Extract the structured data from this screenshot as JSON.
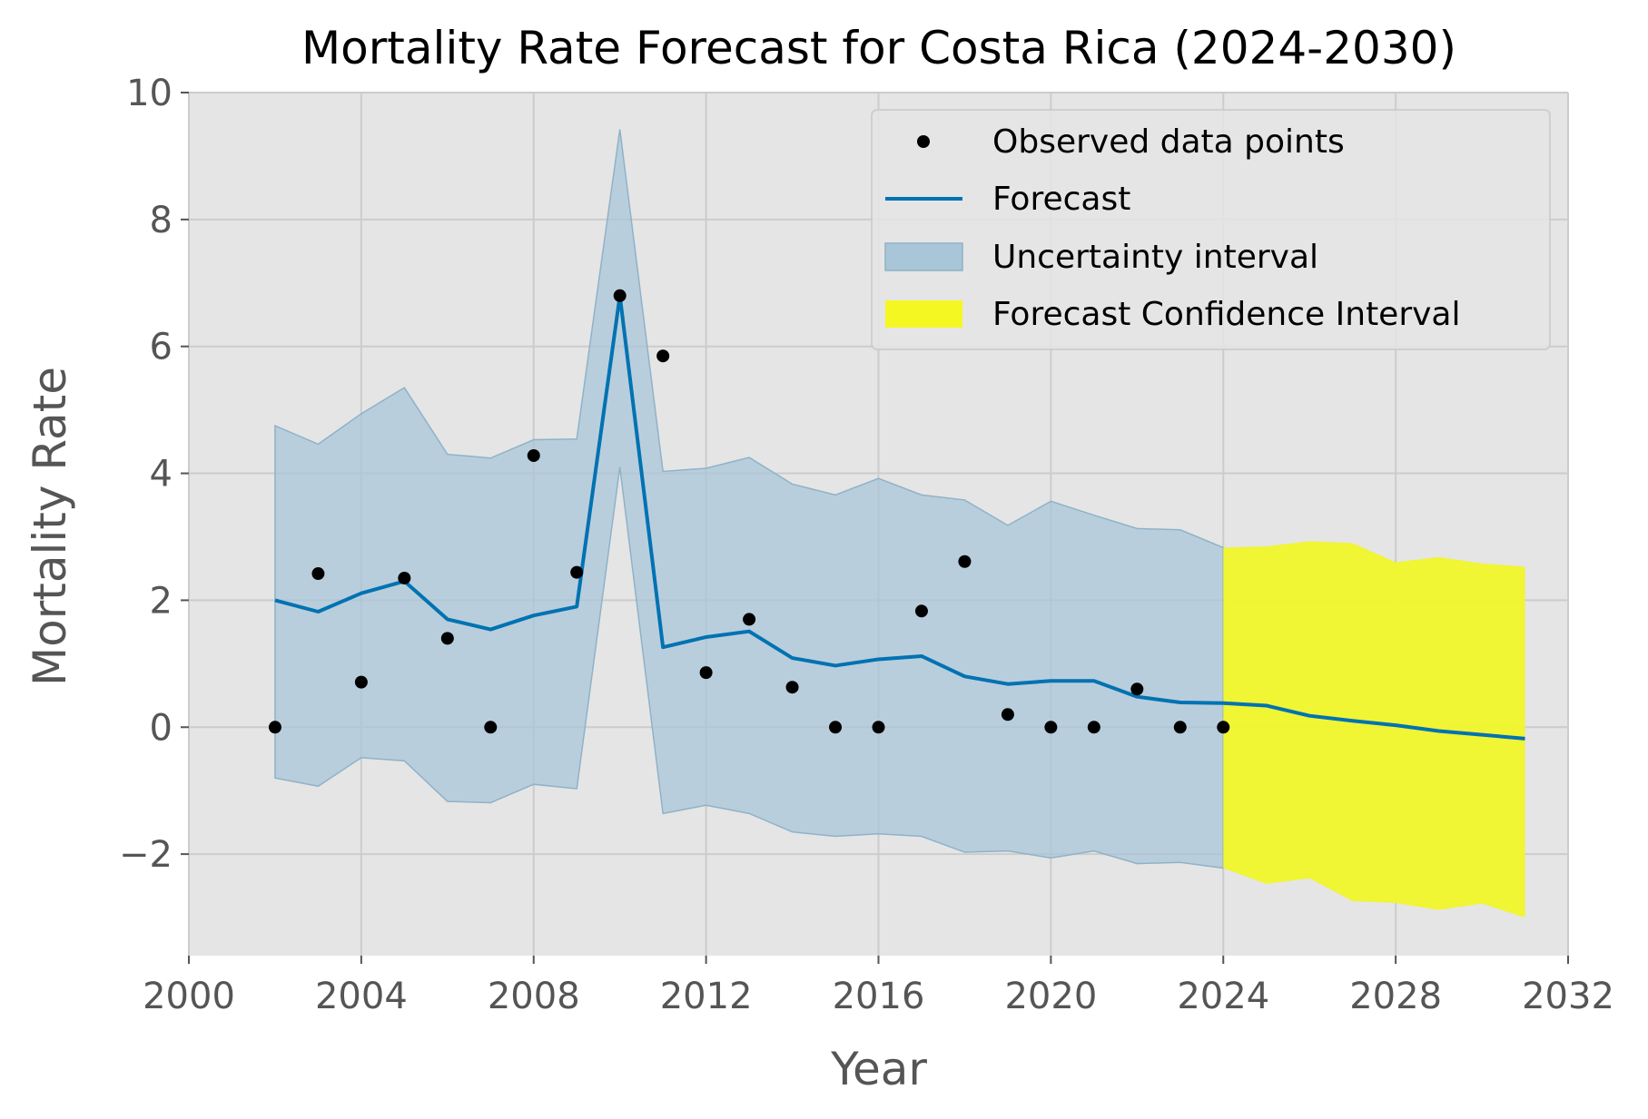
{
  "chart_data": {
    "type": "line",
    "title": "Mortality Rate Forecast for Costa Rica (2024-2030)",
    "xlabel": "Year",
    "ylabel": "Mortality Rate",
    "xlim": [
      2000,
      2032
    ],
    "ylim": [
      -3.6,
      10
    ],
    "x_ticks": [
      2000,
      2004,
      2008,
      2012,
      2016,
      2020,
      2024,
      2028,
      2032
    ],
    "y_ticks": [
      -2,
      0,
      2,
      4,
      6,
      8,
      10
    ],
    "x_tick_labels": [
      "2000",
      "2004",
      "2008",
      "2012",
      "2016",
      "2020",
      "2024",
      "2028",
      "2032"
    ],
    "y_tick_labels": [
      "−2",
      "0",
      "2",
      "4",
      "6",
      "8",
      "10"
    ],
    "grid": true,
    "legend_position": "top-right",
    "legend": [
      "Observed data points",
      "Forecast",
      "Uncertainty interval",
      "Forecast Confidence Interval"
    ],
    "colors": {
      "observed": "#000000",
      "forecast": "#0072B2",
      "uncertainty": "#a9c6d8",
      "forecast_ci": "#f0f52a",
      "plot_background": "#e5e5e5",
      "grid": "#cccccc"
    },
    "observed": {
      "x": [
        2002,
        2003,
        2004,
        2005,
        2006,
        2007,
        2008,
        2009,
        2010,
        2011,
        2012,
        2013,
        2014,
        2015,
        2016,
        2017,
        2018,
        2019,
        2020,
        2021,
        2022,
        2023,
        2024
      ],
      "y": [
        0,
        2.42,
        0.71,
        2.35,
        1.4,
        0,
        4.28,
        2.44,
        6.8,
        5.85,
        0.86,
        1.7,
        0.63,
        0,
        0,
        1.83,
        2.61,
        0.2,
        0,
        0,
        0.6,
        0,
        0
      ]
    },
    "forecast": {
      "x": [
        2002,
        2003,
        2004,
        2005,
        2006,
        2007,
        2008,
        2009,
        2010,
        2011,
        2012,
        2013,
        2014,
        2015,
        2016,
        2017,
        2018,
        2019,
        2020,
        2021,
        2022,
        2023,
        2024,
        2025,
        2026,
        2027,
        2028,
        2029,
        2030,
        2031
      ],
      "y": [
        2.0,
        1.82,
        2.11,
        2.3,
        1.7,
        1.54,
        1.76,
        1.9,
        6.8,
        1.26,
        1.42,
        1.51,
        1.09,
        0.97,
        1.07,
        1.12,
        0.8,
        0.68,
        0.73,
        0.73,
        0.48,
        0.39,
        0.38,
        0.34,
        0.18,
        0.1,
        0.03,
        -0.06,
        -0.12,
        -0.18
      ]
    },
    "uncertainty_interval": {
      "x": [
        2002,
        2003,
        2004,
        2005,
        2006,
        2007,
        2008,
        2009,
        2010,
        2011,
        2012,
        2013,
        2014,
        2015,
        2016,
        2017,
        2018,
        2019,
        2020,
        2021,
        2022,
        2023,
        2024
      ],
      "lower": [
        -0.8,
        -0.93,
        -0.48,
        -0.53,
        -1.17,
        -1.19,
        -0.9,
        -0.97,
        4.1,
        -1.36,
        -1.23,
        -1.36,
        -1.65,
        -1.72,
        -1.68,
        -1.72,
        -1.97,
        -1.95,
        -2.06,
        -1.95,
        -2.15,
        -2.13,
        -2.22
      ],
      "upper": [
        4.75,
        4.46,
        4.94,
        5.35,
        4.3,
        4.24,
        4.53,
        4.54,
        9.42,
        4.03,
        4.08,
        4.25,
        3.83,
        3.66,
        3.92,
        3.66,
        3.58,
        3.18,
        3.56,
        3.34,
        3.13,
        3.11,
        2.83
      ]
    },
    "forecast_confidence_interval": {
      "x": [
        2024,
        2025,
        2026,
        2027,
        2028,
        2029,
        2030,
        2031
      ],
      "lower": [
        -2.22,
        -2.47,
        -2.38,
        -2.74,
        -2.77,
        -2.88,
        -2.78,
        -3.0
      ],
      "upper": [
        2.83,
        2.85,
        2.93,
        2.9,
        2.6,
        2.68,
        2.58,
        2.53
      ]
    }
  }
}
